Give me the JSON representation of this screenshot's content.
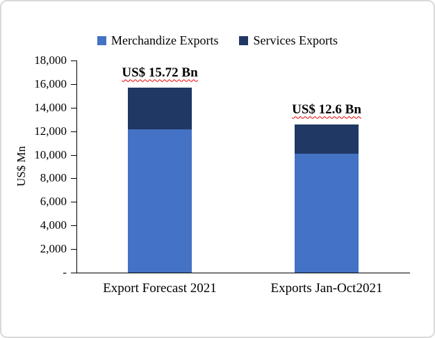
{
  "chart_data": {
    "type": "bar",
    "stacked": true,
    "title": "",
    "ylabel": "US$ Mn",
    "xlabel": "",
    "ylim": [
      0,
      18000
    ],
    "ytick_step": 2000,
    "ytick_labels": [
      "-",
      "2,000",
      "4,000",
      "6,000",
      "8,000",
      "10,000",
      "12,000",
      "14,000",
      "16,000",
      "18,000"
    ],
    "categories": [
      "Export Forecast 2021",
      "Exports Jan-Oct2021"
    ],
    "series": [
      {
        "name": "Merchandize Exports",
        "color": "#4472c4",
        "values": [
          12150,
          10100
        ]
      },
      {
        "name": "Services Exports",
        "color": "#1f3864",
        "values": [
          3570,
          2500
        ]
      }
    ],
    "totals": [
      15720,
      12600
    ],
    "data_labels": [
      "US$ 15.72 Bn",
      "US$ 12.6 Bn"
    ],
    "legend_position": "top",
    "grid": false,
    "colors": {
      "axis": "#000000",
      "spellcheck_underline": "#e60000",
      "chart_border": "#d9d9d9"
    }
  }
}
